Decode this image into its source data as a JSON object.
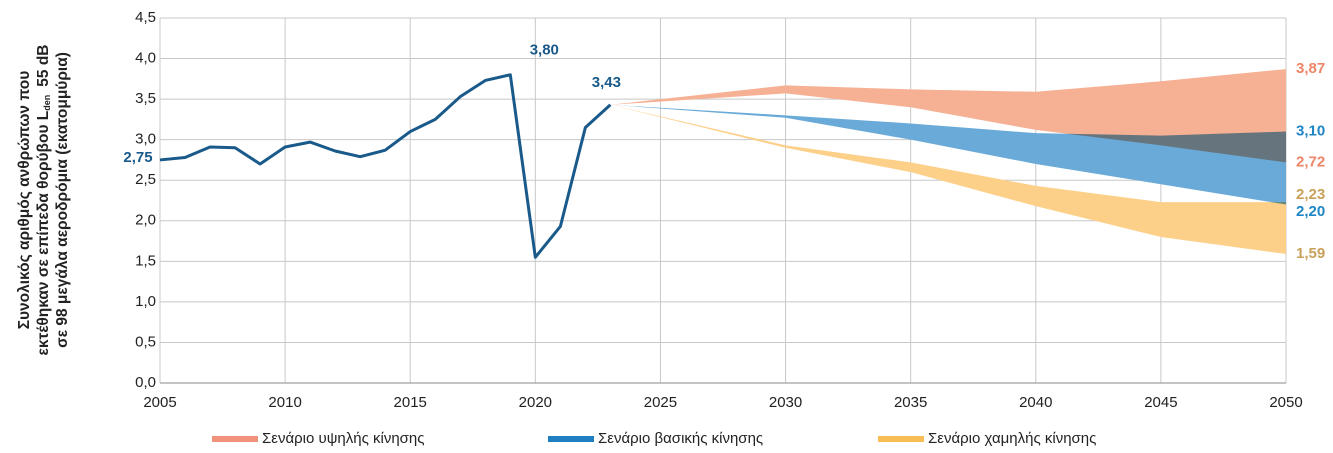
{
  "chart_data": {
    "type": "line",
    "ylabel_lines": [
      "Συνολικός αριθμός ανθρώπων που",
      "εκτέθηκαν σε επίπεδα θορύβου L",
      "σε 98 μεγάλα αεροδρόμια (εκατομμύρια)"
    ],
    "ylabel_sub": "den",
    "ylabel_suffix": "55 dB",
    "xlim": [
      2005,
      2050
    ],
    "xticks": [
      2005,
      2010,
      2015,
      2020,
      2025,
      2030,
      2035,
      2040,
      2045,
      2050
    ],
    "ylim": [
      0,
      4.5
    ],
    "yticks": [
      {
        "value": 0,
        "label": "0,0"
      },
      {
        "value": 0.5,
        "label": "0,5"
      },
      {
        "value": 1,
        "label": "1,0"
      },
      {
        "value": 1.5,
        "label": "1,5"
      },
      {
        "value": 2,
        "label": "2,0"
      },
      {
        "value": 2.5,
        "label": "2,5"
      },
      {
        "value": 3,
        "label": "3,0"
      },
      {
        "value": 3.5,
        "label": "3,5"
      },
      {
        "value": 4,
        "label": "4,0"
      },
      {
        "value": 4.5,
        "label": "4,5"
      }
    ],
    "grid": true,
    "history": {
      "color": "#1a5a8a",
      "x": [
        2005,
        2006,
        2007,
        2008,
        2009,
        2010,
        2011,
        2012,
        2013,
        2014,
        2015,
        2016,
        2017,
        2018,
        2019,
        2020,
        2021,
        2022,
        2023
      ],
      "values": [
        2.75,
        2.78,
        2.91,
        2.9,
        2.7,
        2.91,
        2.97,
        2.86,
        2.79,
        2.87,
        3.1,
        3.25,
        3.53,
        3.73,
        3.8,
        1.55,
        1.93,
        3.15,
        3.43
      ],
      "annotations": [
        {
          "x": 2019,
          "value": 3.8,
          "label": "3,80"
        },
        {
          "x": 2023,
          "value": 3.43,
          "label": "3,43"
        },
        {
          "x": 2005,
          "value": 2.75,
          "label": "2,75"
        }
      ]
    },
    "series": [
      {
        "name": "Σενάριο υψηλής κίνησης",
        "color": "#f6b093",
        "legend_color": "#f0937a",
        "label_color": "#ee8468",
        "x": [
          2023,
          2030,
          2035,
          2040,
          2045,
          2050
        ],
        "upper": [
          3.43,
          3.67,
          3.62,
          3.59,
          3.72,
          3.87
        ],
        "lower": [
          3.43,
          3.57,
          3.4,
          3.12,
          2.93,
          2.72
        ],
        "end_labels": [
          {
            "value": 3.87,
            "label": "3,87"
          },
          {
            "value": 2.72,
            "label": "2,72"
          }
        ]
      },
      {
        "name": "Σενάριο βασικής κίνησης",
        "color": "#6aaad8",
        "legend_color": "#1f7fc1",
        "label_color": "#1f86c6",
        "x": [
          2023,
          2030,
          2035,
          2040,
          2045,
          2050
        ],
        "upper": [
          3.43,
          3.3,
          3.2,
          3.08,
          3.05,
          3.1
        ],
        "lower": [
          3.43,
          3.27,
          3.0,
          2.7,
          2.45,
          2.2
        ],
        "end_labels": [
          {
            "value": 3.1,
            "label": "3,10"
          },
          {
            "value": 2.2,
            "label": "2,20"
          }
        ]
      },
      {
        "name": "Σενάριο χαμηλής κίνησης",
        "color": "#fdd08a",
        "legend_color": "#f9bd55",
        "label_color": "#c9a05a",
        "x": [
          2023,
          2030,
          2035,
          2040,
          2045,
          2050
        ],
        "upper": [
          3.43,
          2.93,
          2.72,
          2.43,
          2.23,
          2.23
        ],
        "lower": [
          3.43,
          2.9,
          2.6,
          2.18,
          1.8,
          1.59
        ],
        "end_labels": [
          {
            "value": 2.23,
            "label": "2,23"
          },
          {
            "value": 1.59,
            "label": "1,59"
          }
        ]
      }
    ]
  }
}
